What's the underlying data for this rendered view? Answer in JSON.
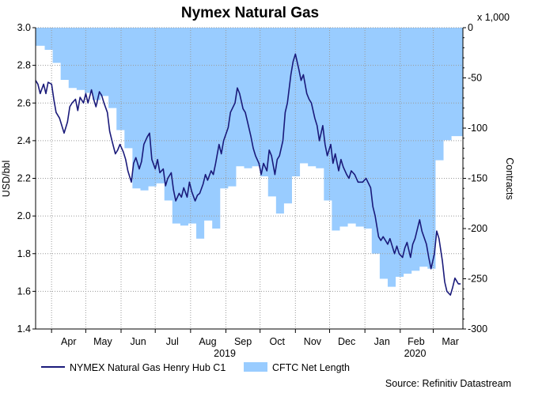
{
  "chart_data": {
    "type": "line",
    "title": "Nymex Natural Gas",
    "ylabel_left": "USD/bbl",
    "ylabel_right": "Contracts",
    "right_axis_multiplier": "x 1,000",
    "ylim_left": [
      1.4,
      3.0
    ],
    "ylim_right": [
      -300,
      0
    ],
    "yticks_left": [
      "1.4",
      "1.6",
      "1.8",
      "2.0",
      "2.2",
      "2.4",
      "2.6",
      "2.8",
      "3.0"
    ],
    "yticks_right": [
      "-300",
      "-250",
      "-200",
      "-150",
      "-100",
      "-50",
      "0"
    ],
    "xlim": [
      "2019-03-18",
      "2020-03-27"
    ],
    "month_ticks": [
      "Apr",
      "May",
      "Jun",
      "Jul",
      "Aug",
      "Sep",
      "Oct",
      "Nov",
      "Dec",
      "Jan",
      "Feb",
      "Mar"
    ],
    "year_labels": [
      "2019",
      "2020"
    ],
    "grid": true,
    "legend_position": "bottom",
    "series": [
      {
        "name": "NYMEX Natural Gas Henry Hub C1",
        "type": "line",
        "axis": "left",
        "color": "#1a1a7a",
        "points": [
          [
            "2019-03-18",
            2.72
          ],
          [
            "2019-03-20",
            2.7
          ],
          [
            "2019-03-22",
            2.65
          ],
          [
            "2019-03-25",
            2.7
          ],
          [
            "2019-03-27",
            2.65
          ],
          [
            "2019-03-29",
            2.71
          ],
          [
            "2019-04-01",
            2.7
          ],
          [
            "2019-04-03",
            2.62
          ],
          [
            "2019-04-05",
            2.55
          ],
          [
            "2019-04-08",
            2.52
          ],
          [
            "2019-04-10",
            2.48
          ],
          [
            "2019-04-12",
            2.44
          ],
          [
            "2019-04-15",
            2.5
          ],
          [
            "2019-04-17",
            2.58
          ],
          [
            "2019-04-19",
            2.6
          ],
          [
            "2019-04-22",
            2.62
          ],
          [
            "2019-04-24",
            2.56
          ],
          [
            "2019-04-26",
            2.63
          ],
          [
            "2019-04-29",
            2.6
          ],
          [
            "2019-05-01",
            2.65
          ],
          [
            "2019-05-03",
            2.6
          ],
          [
            "2019-05-06",
            2.67
          ],
          [
            "2019-05-08",
            2.62
          ],
          [
            "2019-05-10",
            2.58
          ],
          [
            "2019-05-13",
            2.66
          ],
          [
            "2019-05-15",
            2.64
          ],
          [
            "2019-05-17",
            2.6
          ],
          [
            "2019-05-20",
            2.55
          ],
          [
            "2019-05-22",
            2.45
          ],
          [
            "2019-05-24",
            2.4
          ],
          [
            "2019-05-27",
            2.33
          ],
          [
            "2019-05-29",
            2.35
          ],
          [
            "2019-05-31",
            2.38
          ],
          [
            "2019-06-03",
            2.34
          ],
          [
            "2019-06-05",
            2.3
          ],
          [
            "2019-06-07",
            2.24
          ],
          [
            "2019-06-10",
            2.18
          ],
          [
            "2019-06-12",
            2.28
          ],
          [
            "2019-06-14",
            2.31
          ],
          [
            "2019-06-17",
            2.25
          ],
          [
            "2019-06-19",
            2.29
          ],
          [
            "2019-06-21",
            2.38
          ],
          [
            "2019-06-24",
            2.42
          ],
          [
            "2019-06-26",
            2.44
          ],
          [
            "2019-06-28",
            2.3
          ],
          [
            "2019-07-01",
            2.25
          ],
          [
            "2019-07-03",
            2.3
          ],
          [
            "2019-07-05",
            2.23
          ],
          [
            "2019-07-08",
            2.25
          ],
          [
            "2019-07-10",
            2.16
          ],
          [
            "2019-07-12",
            2.2
          ],
          [
            "2019-07-15",
            2.23
          ],
          [
            "2019-07-17",
            2.14
          ],
          [
            "2019-07-19",
            2.08
          ],
          [
            "2019-07-22",
            2.12
          ],
          [
            "2019-07-24",
            2.1
          ],
          [
            "2019-07-26",
            2.15
          ],
          [
            "2019-07-29",
            2.1
          ],
          [
            "2019-07-31",
            2.18
          ],
          [
            "2019-08-02",
            2.13
          ],
          [
            "2019-08-05",
            2.08
          ],
          [
            "2019-08-07",
            2.11
          ],
          [
            "2019-08-09",
            2.12
          ],
          [
            "2019-08-12",
            2.17
          ],
          [
            "2019-08-14",
            2.22
          ],
          [
            "2019-08-16",
            2.19
          ],
          [
            "2019-08-19",
            2.24
          ],
          [
            "2019-08-21",
            2.22
          ],
          [
            "2019-08-23",
            2.28
          ],
          [
            "2019-08-26",
            2.38
          ],
          [
            "2019-08-28",
            2.33
          ],
          [
            "2019-08-30",
            2.4
          ],
          [
            "2019-09-03",
            2.47
          ],
          [
            "2019-09-05",
            2.55
          ],
          [
            "2019-09-09",
            2.6
          ],
          [
            "2019-09-11",
            2.68
          ],
          [
            "2019-09-13",
            2.65
          ],
          [
            "2019-09-16",
            2.57
          ],
          [
            "2019-09-18",
            2.55
          ],
          [
            "2019-09-20",
            2.5
          ],
          [
            "2019-09-23",
            2.42
          ],
          [
            "2019-09-25",
            2.36
          ],
          [
            "2019-09-27",
            2.32
          ],
          [
            "2019-09-30",
            2.28
          ],
          [
            "2019-10-02",
            2.22
          ],
          [
            "2019-10-04",
            2.28
          ],
          [
            "2019-10-07",
            2.24
          ],
          [
            "2019-10-09",
            2.35
          ],
          [
            "2019-10-11",
            2.32
          ],
          [
            "2019-10-14",
            2.22
          ],
          [
            "2019-10-16",
            2.3
          ],
          [
            "2019-10-18",
            2.32
          ],
          [
            "2019-10-21",
            2.4
          ],
          [
            "2019-10-23",
            2.55
          ],
          [
            "2019-10-25",
            2.6
          ],
          [
            "2019-10-28",
            2.75
          ],
          [
            "2019-10-30",
            2.82
          ],
          [
            "2019-11-01",
            2.86
          ],
          [
            "2019-11-04",
            2.78
          ],
          [
            "2019-11-06",
            2.72
          ],
          [
            "2019-11-08",
            2.75
          ],
          [
            "2019-11-11",
            2.65
          ],
          [
            "2019-11-13",
            2.62
          ],
          [
            "2019-11-15",
            2.6
          ],
          [
            "2019-11-18",
            2.52
          ],
          [
            "2019-11-20",
            2.48
          ],
          [
            "2019-11-22",
            2.4
          ],
          [
            "2019-11-25",
            2.48
          ],
          [
            "2019-11-27",
            2.38
          ],
          [
            "2019-11-29",
            2.32
          ],
          [
            "2019-12-02",
            2.38
          ],
          [
            "2019-12-04",
            2.28
          ],
          [
            "2019-12-06",
            2.33
          ],
          [
            "2019-12-09",
            2.24
          ],
          [
            "2019-12-11",
            2.3
          ],
          [
            "2019-12-13",
            2.26
          ],
          [
            "2019-12-16",
            2.22
          ],
          [
            "2019-12-18",
            2.2
          ],
          [
            "2019-12-20",
            2.24
          ],
          [
            "2019-12-23",
            2.22
          ],
          [
            "2019-12-26",
            2.18
          ],
          [
            "2019-12-30",
            2.18
          ],
          [
            "2020-01-02",
            2.2
          ],
          [
            "2020-01-06",
            2.15
          ],
          [
            "2020-01-08",
            2.05
          ],
          [
            "2020-01-10",
            2.0
          ],
          [
            "2020-01-13",
            1.89
          ],
          [
            "2020-01-15",
            1.87
          ],
          [
            "2020-01-17",
            1.89
          ],
          [
            "2020-01-21",
            1.85
          ],
          [
            "2020-01-23",
            1.88
          ],
          [
            "2020-01-27",
            1.8
          ],
          [
            "2020-01-29",
            1.84
          ],
          [
            "2020-01-31",
            1.8
          ],
          [
            "2020-02-03",
            1.78
          ],
          [
            "2020-02-05",
            1.83
          ],
          [
            "2020-02-07",
            1.86
          ],
          [
            "2020-02-10",
            1.78
          ],
          [
            "2020-02-12",
            1.85
          ],
          [
            "2020-02-14",
            1.88
          ],
          [
            "2020-02-18",
            1.98
          ],
          [
            "2020-02-20",
            1.92
          ],
          [
            "2020-02-24",
            1.85
          ],
          [
            "2020-02-26",
            1.78
          ],
          [
            "2020-02-28",
            1.72
          ],
          [
            "2020-03-02",
            1.8
          ],
          [
            "2020-03-04",
            1.92
          ],
          [
            "2020-03-06",
            1.88
          ],
          [
            "2020-03-09",
            1.76
          ],
          [
            "2020-03-11",
            1.65
          ],
          [
            "2020-03-13",
            1.6
          ],
          [
            "2020-03-16",
            1.58
          ],
          [
            "2020-03-18",
            1.62
          ],
          [
            "2020-03-20",
            1.67
          ],
          [
            "2020-03-23",
            1.64
          ],
          [
            "2020-03-25",
            1.64
          ]
        ]
      },
      {
        "name": "CFTC Net Length",
        "type": "area",
        "axis": "right",
        "color": "#99ccff",
        "steps": [
          [
            "2019-03-18",
            -18
          ],
          [
            "2019-03-26",
            -22
          ],
          [
            "2019-04-02",
            -35
          ],
          [
            "2019-04-09",
            -52
          ],
          [
            "2019-04-16",
            -60
          ],
          [
            "2019-04-23",
            -62
          ],
          [
            "2019-04-30",
            -65
          ],
          [
            "2019-05-07",
            -72
          ],
          [
            "2019-05-14",
            -68
          ],
          [
            "2019-05-21",
            -80
          ],
          [
            "2019-05-28",
            -102
          ],
          [
            "2019-06-04",
            -120
          ],
          [
            "2019-06-11",
            -160
          ],
          [
            "2019-06-18",
            -162
          ],
          [
            "2019-06-25",
            -158
          ],
          [
            "2019-07-02",
            -155
          ],
          [
            "2019-07-09",
            -172
          ],
          [
            "2019-07-16",
            -195
          ],
          [
            "2019-07-23",
            -197
          ],
          [
            "2019-07-30",
            -195
          ],
          [
            "2019-08-06",
            -210
          ],
          [
            "2019-08-13",
            -192
          ],
          [
            "2019-08-20",
            -200
          ],
          [
            "2019-08-27",
            -160
          ],
          [
            "2019-09-03",
            -158
          ],
          [
            "2019-09-10",
            -138
          ],
          [
            "2019-09-17",
            -140
          ],
          [
            "2019-09-24",
            -138
          ],
          [
            "2019-10-01",
            -148
          ],
          [
            "2019-10-08",
            -168
          ],
          [
            "2019-10-15",
            -185
          ],
          [
            "2019-10-22",
            -175
          ],
          [
            "2019-10-29",
            -148
          ],
          [
            "2019-11-05",
            -135
          ],
          [
            "2019-11-12",
            -138
          ],
          [
            "2019-11-19",
            -140
          ],
          [
            "2019-11-26",
            -172
          ],
          [
            "2019-12-03",
            -202
          ],
          [
            "2019-12-10",
            -198
          ],
          [
            "2019-12-17",
            -195
          ],
          [
            "2019-12-24",
            -198
          ],
          [
            "2019-12-31",
            -200
          ],
          [
            "2020-01-07",
            -225
          ],
          [
            "2020-01-14",
            -250
          ],
          [
            "2020-01-21",
            -258
          ],
          [
            "2020-01-28",
            -248
          ],
          [
            "2020-02-04",
            -245
          ],
          [
            "2020-02-11",
            -242
          ],
          [
            "2020-02-18",
            -238
          ],
          [
            "2020-02-25",
            -240
          ],
          [
            "2020-03-03",
            -132
          ],
          [
            "2020-03-10",
            -112
          ],
          [
            "2020-03-17",
            -108
          ],
          [
            "2020-03-27",
            -108
          ]
        ]
      }
    ]
  },
  "source_text": "Source: Refinitiv Datastream"
}
